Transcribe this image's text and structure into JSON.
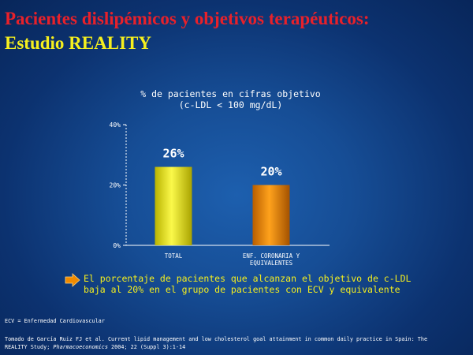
{
  "title": {
    "line1": "Pacientes dislipémicos y objetivos terapéuticos:",
    "line2": "Estudio REALITY"
  },
  "chart_heading": {
    "line1": "%  de pacientes en cifras objetivo",
    "line2": "(c-LDL < 100 mg/dL)"
  },
  "colors": {
    "title_red": "#e8212a",
    "title_yellow": "#f5ef1e",
    "bar_total": "#f1ee12",
    "bar_coronary": "#f08a00",
    "axis": "#ffffff",
    "arrow": "#f08a00"
  },
  "chart_data": {
    "type": "bar",
    "categories": [
      "TOTAL",
      "ENF. CORONARIA Y\nEQUIVALENTES"
    ],
    "values": [
      26,
      20
    ],
    "data_labels": [
      "26%",
      "20%"
    ],
    "yticks": [
      "40%",
      "20%",
      "0%"
    ],
    "ytick_values": [
      40,
      20,
      0
    ],
    "ylim": [
      0,
      40
    ],
    "grid": false,
    "title": "",
    "xlabel": "",
    "ylabel": ""
  },
  "conclusion": {
    "icon": "arrow-right-icon",
    "line1": "El porcentaje de pacientes que alcanzan el objetivo de c-LDL",
    "line2": "baja al 20% en el grupo de pacientes con ECV y equivalente"
  },
  "abbreviation": "ECV = Enfermedad Cardiovascular",
  "reference": {
    "line1": "Tomado de García Ruiz FJ et al. Current lipid management and low cholesterol goal attainment in common daily practice in Spain: The",
    "line2_prefix": "REALITY Study; ",
    "journal": "Pharmacoeconomics",
    "line2_suffix": " 2004; 22 (Suppl 3):1-14"
  }
}
